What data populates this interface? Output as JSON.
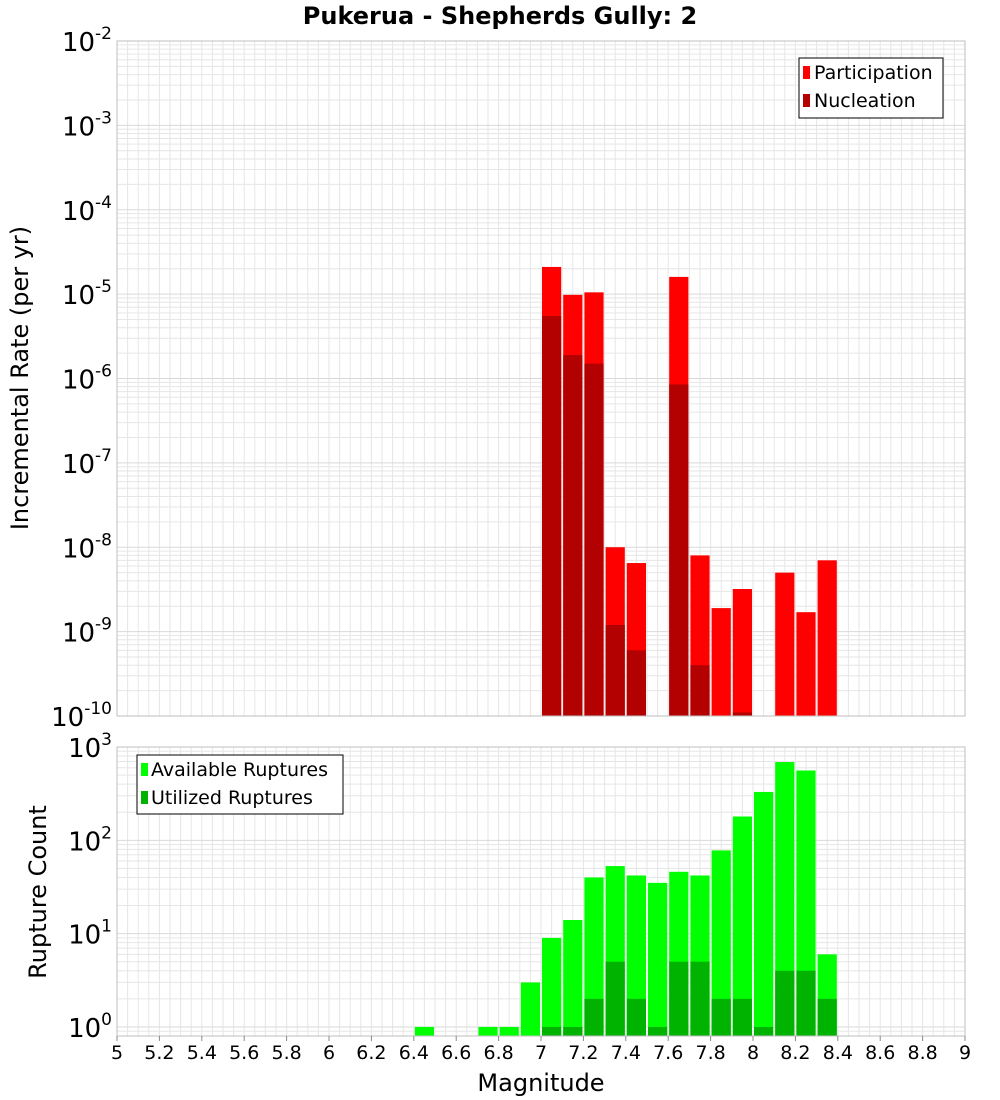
{
  "title": "Pukerua - Shepherds Gully: 2",
  "x_axis_label": "Magnitude",
  "x_ticks": [
    "5",
    "5.2",
    "5.4",
    "5.6",
    "5.8",
    "6",
    "6.2",
    "6.4",
    "6.6",
    "6.8",
    "7",
    "7.2",
    "7.4",
    "7.6",
    "7.8",
    "8",
    "8.2",
    "8.4",
    "8.6",
    "8.8",
    "9"
  ],
  "colors": {
    "participation": "#ff0000",
    "nucleation": "#b30000",
    "available": "#00ff00",
    "utilized": "#00b300",
    "plot_border": "#bfbfbf",
    "grid": "#e6e6e6"
  },
  "chart_data": [
    {
      "type": "bar",
      "panel": "top",
      "ylabel": "Incremental Rate (per yr)",
      "yscale": "log",
      "ylim": [
        1e-10,
        0.01
      ],
      "xlim": [
        5,
        9
      ],
      "y_tick_labels": [
        {
          "base": "10",
          "exp": "-10"
        },
        {
          "base": "10",
          "exp": "-9"
        },
        {
          "base": "10",
          "exp": "-8"
        },
        {
          "base": "10",
          "exp": "-7"
        },
        {
          "base": "10",
          "exp": "-6"
        },
        {
          "base": "10",
          "exp": "-5"
        },
        {
          "base": "10",
          "exp": "-4"
        },
        {
          "base": "10",
          "exp": "-3"
        },
        {
          "base": "10",
          "exp": "-2"
        }
      ],
      "legend": {
        "position": "top-right",
        "entries": [
          "Participation",
          "Nucleation"
        ]
      },
      "grid": true,
      "series": [
        {
          "name": "Participation",
          "x": [
            7.05,
            7.15,
            7.25,
            7.35,
            7.45,
            7.65,
            7.75,
            7.85,
            7.95,
            8.15,
            8.25,
            8.35
          ],
          "values": [
            2.1e-05,
            9.8e-06,
            1.05e-05,
            1e-08,
            6.5e-09,
            1.6e-05,
            8e-09,
            1.9e-09,
            3.2e-09,
            5e-09,
            1.7e-09,
            7e-09
          ]
        },
        {
          "name": "Nucleation",
          "x": [
            7.05,
            7.15,
            7.25,
            7.35,
            7.45,
            7.65,
            7.75,
            7.95
          ],
          "values": [
            5.5e-06,
            1.9e-06,
            1.5e-06,
            1.2e-09,
            6e-10,
            8.5e-07,
            4e-10,
            1.1e-10
          ]
        }
      ]
    },
    {
      "type": "bar",
      "panel": "bottom",
      "ylabel": "Rupture Count",
      "yscale": "log",
      "ylim": [
        0.8,
        1000
      ],
      "xlim": [
        5,
        9
      ],
      "y_tick_labels": [
        {
          "base": "10",
          "exp": "0"
        },
        {
          "base": "10",
          "exp": "1"
        },
        {
          "base": "10",
          "exp": "2"
        },
        {
          "base": "10",
          "exp": "3"
        }
      ],
      "legend": {
        "position": "top-left",
        "entries": [
          "Available Ruptures",
          "Utilized Ruptures"
        ]
      },
      "grid": true,
      "series": [
        {
          "name": "Available Ruptures",
          "x": [
            6.45,
            6.75,
            6.85,
            6.95,
            7.05,
            7.15,
            7.25,
            7.35,
            7.45,
            7.55,
            7.65,
            7.75,
            7.85,
            7.95,
            8.05,
            8.15,
            8.25,
            8.35
          ],
          "values": [
            1,
            1,
            1,
            3,
            9,
            14,
            40,
            53,
            42,
            35,
            46,
            42,
            78,
            180,
            330,
            690,
            560,
            6
          ]
        },
        {
          "name": "Utilized Ruptures",
          "x": [
            7.05,
            7.15,
            7.25,
            7.35,
            7.45,
            7.55,
            7.65,
            7.75,
            7.85,
            7.95,
            8.05,
            8.15,
            8.25,
            8.35
          ],
          "values": [
            1,
            1,
            2,
            5,
            2,
            1,
            5,
            5,
            2,
            2,
            1,
            4,
            4,
            2
          ]
        }
      ]
    }
  ]
}
